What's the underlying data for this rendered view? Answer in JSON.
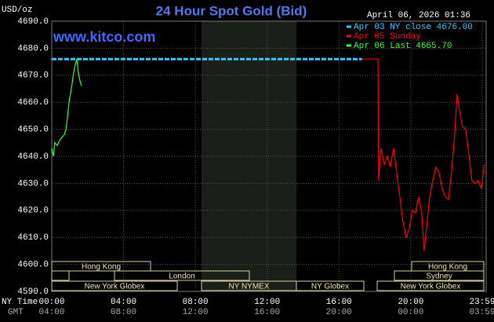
{
  "chart_data": {
    "type": "line",
    "title": "24 Hour Spot Gold (Bid)",
    "unit_label": "USD/oz",
    "timestamp": "April 06, 2026 01:36",
    "watermark": "www.kitco.com",
    "x_axis_labels": [
      "NY Time",
      "GMT"
    ],
    "xlim": [
      0,
      24.2
    ],
    "xticks": [
      {
        "value": 0,
        "label": "00:00"
      },
      {
        "value": 4,
        "label": "04:00"
      },
      {
        "value": 8,
        "label": "08:00"
      },
      {
        "value": 12,
        "label": "12:00"
      },
      {
        "value": 16,
        "label": "16:00"
      },
      {
        "value": 20,
        "label": "20:00"
      },
      {
        "value": 23.98,
        "label": "23:59"
      }
    ],
    "gmt_labels": [
      "04:00",
      "08:00",
      "12:00",
      "16:00",
      "20:00",
      "00:00",
      "03:59"
    ],
    "ylim": [
      4590,
      4690
    ],
    "yticks": [
      {
        "value": 4590,
        "label": "4590.0"
      },
      {
        "value": 4600,
        "label": "4600.0"
      },
      {
        "value": 4610,
        "label": "4610.0"
      },
      {
        "value": 4620,
        "label": "4620.0"
      },
      {
        "value": 4630,
        "label": "4630.0"
      },
      {
        "value": 4640,
        "label": "4640.0"
      },
      {
        "value": 4650,
        "label": "4650.0"
      },
      {
        "value": 4660,
        "label": "4660.0"
      },
      {
        "value": 4670,
        "label": "4670.0"
      },
      {
        "value": 4680,
        "label": "4680.0"
      },
      {
        "value": 4690,
        "label": "4690.0"
      }
    ],
    "grid": true,
    "sessions": [
      "Hong Kong",
      "London",
      "New York Globex",
      "NY NYMEX",
      "NY Globex",
      "Hong Kong",
      "Sydney",
      "New York Globex"
    ],
    "series": [
      {
        "name": "Apr 03 NY close 4676.00",
        "color": "#33ccff",
        "dashed": true,
        "x": [
          0,
          17.29
        ],
        "values": [
          4676,
          4676
        ]
      },
      {
        "name": "Apr 05 Sunday",
        "color": "#ff0000",
        "x": [
          17.29,
          18.17,
          18.21,
          18.34,
          18.52,
          18.69,
          18.86,
          19.04,
          19.21,
          19.39,
          19.56,
          19.74,
          19.91,
          20.09,
          20.26,
          20.44,
          20.61,
          20.74,
          20.87,
          21.05,
          21.22,
          21.4,
          21.57,
          21.75,
          21.92,
          22.1,
          22.27,
          22.45,
          22.58,
          22.71,
          22.88,
          23.06,
          23.23,
          23.41,
          23.58,
          23.76,
          23.93,
          24.1
        ],
        "values": [
          4676,
          4676,
          4631,
          4643,
          4637,
          4640,
          4636,
          4643,
          4634,
          4625,
          4616,
          4610,
          4613,
          4620,
          4619,
          4625,
          4619,
          4605,
          4613,
          4625,
          4631,
          4636,
          4634,
          4628,
          4625,
          4624,
          4634,
          4648,
          4663,
          4657,
          4651,
          4650,
          4641,
          4631,
          4630,
          4631,
          4628,
          4637
        ]
      },
      {
        "name": "Apr 06 Last 4665.70",
        "color": "#33ff33",
        "x": [
          0,
          0.09,
          0.17,
          0.31,
          0.44,
          0.57,
          0.7,
          0.79,
          0.87,
          0.96,
          1.09,
          1.22,
          1.31,
          1.4,
          1.48,
          1.57,
          1.66
        ],
        "values": [
          4643,
          4640,
          4645,
          4644,
          4646,
          4647,
          4648,
          4650,
          4654,
          4660,
          4665,
          4671,
          4674,
          4676,
          4671,
          4668,
          4666
        ]
      }
    ]
  }
}
